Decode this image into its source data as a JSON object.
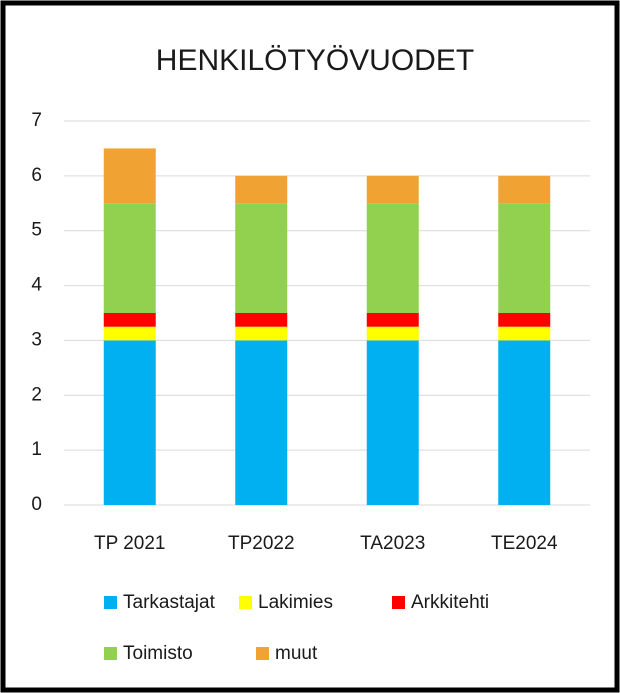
{
  "chart_data": {
    "type": "stacked_bar",
    "title": "HENKILÖTYÖVUODET",
    "categories": [
      "TP 2021",
      "TP2022",
      "TA2023",
      "TE2024"
    ],
    "series": [
      {
        "name": "Tarkastajat",
        "color": "#00b0f0",
        "values": [
          3,
          3,
          3,
          3
        ]
      },
      {
        "name": "Lakimies",
        "color": "#ffff00",
        "values": [
          0.25,
          0.25,
          0.25,
          0.25
        ]
      },
      {
        "name": "Arkkitehti",
        "color": "#ff0000",
        "values": [
          0.25,
          0.25,
          0.25,
          0.25
        ]
      },
      {
        "name": "Toimisto",
        "color": "#92d050",
        "values": [
          2,
          2,
          2,
          2
        ]
      },
      {
        "name": "muut",
        "color": "#f0a232",
        "values": [
          1,
          0.5,
          0.5,
          0.5
        ]
      }
    ],
    "ylim": [
      0,
      7
    ],
    "yticks": [
      0,
      1,
      2,
      3,
      4,
      5,
      6,
      7
    ],
    "grid": true,
    "legend": "bottom"
  }
}
